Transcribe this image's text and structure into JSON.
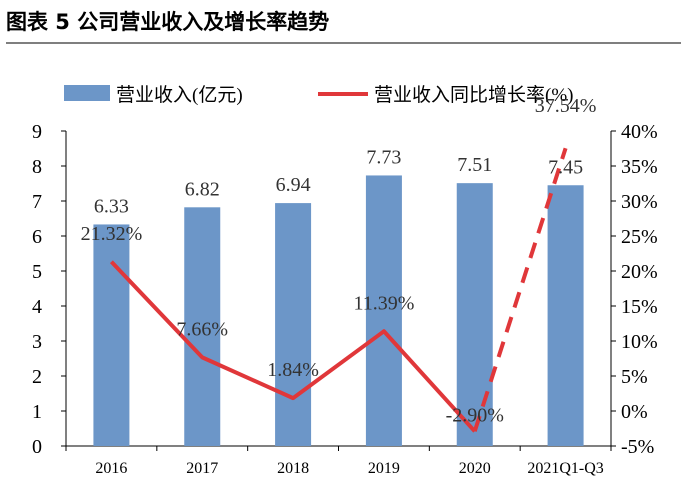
{
  "figure": {
    "caption": "图表 5 公司营业收入及增长率趋势"
  },
  "chart_data": {
    "type": "bar",
    "categories": [
      "2016",
      "2017",
      "2018",
      "2019",
      "2020",
      "2021Q1-Q3"
    ],
    "series": [
      {
        "name": "营业收入(亿元)",
        "type": "bar",
        "axis": "left",
        "color": "#6C96C8",
        "values": [
          6.33,
          6.82,
          6.94,
          7.73,
          7.51,
          7.45
        ],
        "labels": [
          "6.33",
          "6.82",
          "6.94",
          "7.73",
          "7.51",
          "7.45"
        ]
      },
      {
        "name": "营业收入同比增长率(%)",
        "type": "line",
        "axis": "right",
        "color": "#E0373A",
        "values": [
          21.32,
          7.66,
          1.84,
          11.39,
          -2.9,
          37.54
        ],
        "labels": [
          "21.32%",
          "7.66%",
          "1.84%",
          "11.39%",
          "-2.90%",
          "37.54%"
        ],
        "dashed_last_segment": true
      }
    ],
    "y_left": {
      "min": 0,
      "max": 9,
      "ticks": [
        "0",
        "1",
        "2",
        "3",
        "4",
        "5",
        "6",
        "7",
        "8",
        "9"
      ]
    },
    "y_right": {
      "min": -5,
      "max": 40,
      "ticks": [
        "-5%",
        "0%",
        "5%",
        "10%",
        "15%",
        "20%",
        "25%",
        "30%",
        "35%",
        "40%"
      ]
    },
    "grid": false,
    "legend": "top"
  }
}
